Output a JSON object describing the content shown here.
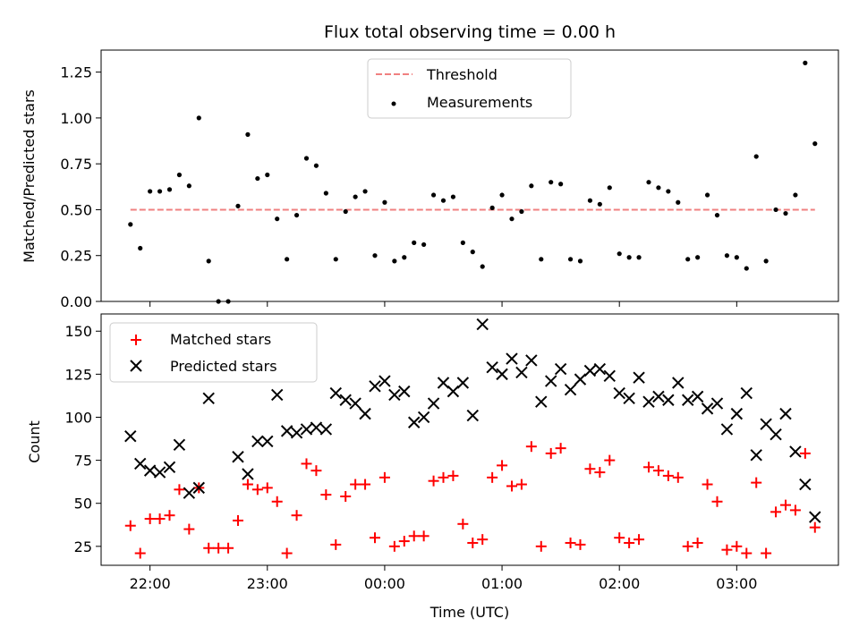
{
  "chart_data": [
    {
      "type": "scatter",
      "title": "Flux total observing time = 0.00 h",
      "ylabel": "Matched/Predicted stars",
      "xlabel": "",
      "ylim": [
        0,
        1.37
      ],
      "xlim": [
        "21:35",
        "03:52"
      ],
      "yticks": [
        "0.00",
        "0.25",
        "0.50",
        "0.75",
        "1.00",
        "1.25"
      ],
      "grid": false,
      "legend_position": "upper center",
      "series": [
        {
          "name": "Threshold",
          "style": "dashed-line",
          "color": "#f08080",
          "x": [
            "21:50",
            "03:40"
          ],
          "y": [
            0.5,
            0.5
          ]
        },
        {
          "name": "Measurements",
          "style": "dot",
          "color": "#000000",
          "points": [
            [
              "21:50",
              0.42
            ],
            [
              "21:55",
              0.29
            ],
            [
              "22:00",
              0.6
            ],
            [
              "22:05",
              0.6
            ],
            [
              "22:10",
              0.61
            ],
            [
              "22:15",
              0.69
            ],
            [
              "22:20",
              0.63
            ],
            [
              "22:25",
              1.0
            ],
            [
              "22:30",
              0.22
            ],
            [
              "22:35",
              0.0
            ],
            [
              "22:40",
              0.0
            ],
            [
              "22:45",
              0.52
            ],
            [
              "22:50",
              0.91
            ],
            [
              "22:55",
              0.67
            ],
            [
              "23:00",
              0.69
            ],
            [
              "23:05",
              0.45
            ],
            [
              "23:10",
              0.23
            ],
            [
              "23:15",
              0.47
            ],
            [
              "23:20",
              0.78
            ],
            [
              "23:25",
              0.74
            ],
            [
              "23:30",
              0.59
            ],
            [
              "23:35",
              0.23
            ],
            [
              "23:40",
              0.49
            ],
            [
              "23:45",
              0.57
            ],
            [
              "23:50",
              0.6
            ],
            [
              "23:55",
              0.25
            ],
            [
              "00:00",
              0.54
            ],
            [
              "00:05",
              0.22
            ],
            [
              "00:10",
              0.24
            ],
            [
              "00:15",
              0.32
            ],
            [
              "00:20",
              0.31
            ],
            [
              "00:25",
              0.58
            ],
            [
              "00:30",
              0.55
            ],
            [
              "00:35",
              0.57
            ],
            [
              "00:40",
              0.32
            ],
            [
              "00:45",
              0.27
            ],
            [
              "00:50",
              0.19
            ],
            [
              "00:55",
              0.51
            ],
            [
              "01:00",
              0.58
            ],
            [
              "01:05",
              0.45
            ],
            [
              "01:10",
              0.49
            ],
            [
              "01:15",
              0.63
            ],
            [
              "01:20",
              0.23
            ],
            [
              "01:25",
              0.65
            ],
            [
              "01:30",
              0.64
            ],
            [
              "01:35",
              0.23
            ],
            [
              "01:40",
              0.22
            ],
            [
              "01:45",
              0.55
            ],
            [
              "01:50",
              0.53
            ],
            [
              "01:55",
              0.62
            ],
            [
              "02:00",
              0.26
            ],
            [
              "02:05",
              0.24
            ],
            [
              "02:10",
              0.24
            ],
            [
              "02:15",
              0.65
            ],
            [
              "02:20",
              0.62
            ],
            [
              "02:25",
              0.6
            ],
            [
              "02:30",
              0.54
            ],
            [
              "02:35",
              0.23
            ],
            [
              "02:40",
              0.24
            ],
            [
              "02:45",
              0.58
            ],
            [
              "02:50",
              0.47
            ],
            [
              "02:55",
              0.25
            ],
            [
              "03:00",
              0.24
            ],
            [
              "03:05",
              0.18
            ],
            [
              "03:10",
              0.79
            ],
            [
              "03:15",
              0.22
            ],
            [
              "03:20",
              0.5
            ],
            [
              "03:25",
              0.48
            ],
            [
              "03:30",
              0.58
            ],
            [
              "03:35",
              1.3
            ],
            [
              "03:40",
              0.86
            ]
          ]
        }
      ]
    },
    {
      "type": "scatter",
      "title": "",
      "ylabel": "Count",
      "xlabel": "Time (UTC)",
      "ylim": [
        14,
        160
      ],
      "xlim": [
        "21:35",
        "03:52"
      ],
      "yticks": [
        "25",
        "50",
        "75",
        "100",
        "125",
        "150"
      ],
      "xticks": [
        "22:00",
        "23:00",
        "00:00",
        "01:00",
        "02:00",
        "03:00"
      ],
      "grid": false,
      "legend_position": "upper left",
      "series": [
        {
          "name": "Matched stars",
          "style": "plus",
          "color": "#ff0000",
          "points": [
            [
              "21:50",
              37
            ],
            [
              "21:55",
              21
            ],
            [
              "22:00",
              41
            ],
            [
              "22:05",
              41
            ],
            [
              "22:10",
              43
            ],
            [
              "22:15",
              58
            ],
            [
              "22:20",
              35
            ],
            [
              "22:25",
              59
            ],
            [
              "22:30",
              24
            ],
            [
              "22:35",
              24
            ],
            [
              "22:40",
              24
            ],
            [
              "22:45",
              40
            ],
            [
              "22:50",
              61
            ],
            [
              "22:55",
              58
            ],
            [
              "23:00",
              59
            ],
            [
              "23:05",
              51
            ],
            [
              "23:10",
              21
            ],
            [
              "23:15",
              43
            ],
            [
              "23:20",
              73
            ],
            [
              "23:25",
              69
            ],
            [
              "23:30",
              55
            ],
            [
              "23:35",
              26
            ],
            [
              "23:40",
              54
            ],
            [
              "23:45",
              61
            ],
            [
              "23:50",
              61
            ],
            [
              "23:55",
              30
            ],
            [
              "00:00",
              65
            ],
            [
              "00:05",
              25
            ],
            [
              "00:10",
              28
            ],
            [
              "00:15",
              31
            ],
            [
              "00:20",
              31
            ],
            [
              "00:25",
              63
            ],
            [
              "00:30",
              65
            ],
            [
              "00:35",
              66
            ],
            [
              "00:40",
              38
            ],
            [
              "00:45",
              27
            ],
            [
              "00:50",
              29
            ],
            [
              "00:55",
              65
            ],
            [
              "01:00",
              72
            ],
            [
              "01:05",
              60
            ],
            [
              "01:10",
              61
            ],
            [
              "01:15",
              83
            ],
            [
              "01:20",
              25
            ],
            [
              "01:25",
              79
            ],
            [
              "01:30",
              82
            ],
            [
              "01:35",
              27
            ],
            [
              "01:40",
              26
            ],
            [
              "01:45",
              70
            ],
            [
              "01:50",
              68
            ],
            [
              "01:55",
              75
            ],
            [
              "02:00",
              30
            ],
            [
              "02:05",
              27
            ],
            [
              "02:10",
              29
            ],
            [
              "02:15",
              71
            ],
            [
              "02:20",
              69
            ],
            [
              "02:25",
              66
            ],
            [
              "02:30",
              65
            ],
            [
              "02:35",
              25
            ],
            [
              "02:40",
              27
            ],
            [
              "02:45",
              61
            ],
            [
              "02:50",
              51
            ],
            [
              "02:55",
              23
            ],
            [
              "03:00",
              25
            ],
            [
              "03:05",
              21
            ],
            [
              "03:10",
              62
            ],
            [
              "03:15",
              21
            ],
            [
              "03:20",
              45
            ],
            [
              "03:25",
              49
            ],
            [
              "03:30",
              46
            ],
            [
              "03:35",
              79
            ],
            [
              "03:40",
              36
            ]
          ]
        },
        {
          "name": "Predicted stars",
          "style": "x",
          "color": "#000000",
          "points": [
            [
              "21:50",
              89
            ],
            [
              "21:55",
              73
            ],
            [
              "22:00",
              69
            ],
            [
              "22:05",
              68
            ],
            [
              "22:10",
              71
            ],
            [
              "22:15",
              84
            ],
            [
              "22:20",
              56
            ],
            [
              "22:25",
              59
            ],
            [
              "22:30",
              111
            ],
            [
              "22:45",
              77
            ],
            [
              "22:50",
              67
            ],
            [
              "22:55",
              86
            ],
            [
              "23:00",
              86
            ],
            [
              "23:05",
              113
            ],
            [
              "23:10",
              92
            ],
            [
              "23:15",
              91
            ],
            [
              "23:20",
              93
            ],
            [
              "23:25",
              94
            ],
            [
              "23:30",
              93
            ],
            [
              "23:35",
              114
            ],
            [
              "23:40",
              110
            ],
            [
              "23:45",
              108
            ],
            [
              "23:50",
              102
            ],
            [
              "23:55",
              118
            ],
            [
              "00:00",
              121
            ],
            [
              "00:05",
              113
            ],
            [
              "00:10",
              115
            ],
            [
              "00:15",
              97
            ],
            [
              "00:20",
              100
            ],
            [
              "00:25",
              108
            ],
            [
              "00:30",
              120
            ],
            [
              "00:35",
              115
            ],
            [
              "00:40",
              120
            ],
            [
              "00:45",
              101
            ],
            [
              "00:50",
              154
            ],
            [
              "00:55",
              129
            ],
            [
              "01:00",
              125
            ],
            [
              "01:05",
              134
            ],
            [
              "01:10",
              126
            ],
            [
              "01:15",
              133
            ],
            [
              "01:20",
              109
            ],
            [
              "01:25",
              121
            ],
            [
              "01:30",
              128
            ],
            [
              "01:35",
              116
            ],
            [
              "01:40",
              122
            ],
            [
              "01:45",
              127
            ],
            [
              "01:50",
              128
            ],
            [
              "01:55",
              124
            ],
            [
              "02:00",
              114
            ],
            [
              "02:05",
              111
            ],
            [
              "02:10",
              123
            ],
            [
              "02:15",
              109
            ],
            [
              "02:20",
              112
            ],
            [
              "02:25",
              110
            ],
            [
              "02:30",
              120
            ],
            [
              "02:35",
              110
            ],
            [
              "02:40",
              112
            ],
            [
              "02:45",
              105
            ],
            [
              "02:50",
              108
            ],
            [
              "02:55",
              93
            ],
            [
              "03:00",
              102
            ],
            [
              "03:05",
              114
            ],
            [
              "03:10",
              78
            ],
            [
              "03:15",
              96
            ],
            [
              "03:20",
              90
            ],
            [
              "03:25",
              102
            ],
            [
              "03:30",
              80
            ],
            [
              "03:35",
              61
            ],
            [
              "03:40",
              42
            ]
          ]
        }
      ]
    }
  ]
}
